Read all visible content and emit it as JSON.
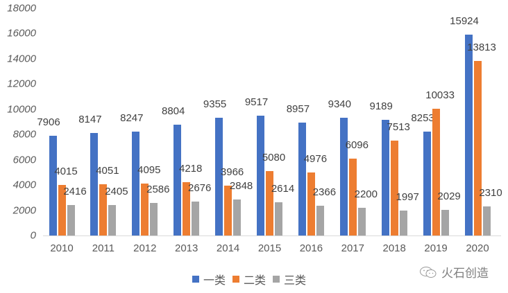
{
  "chart_data": {
    "type": "bar",
    "title": "",
    "xlabel": "",
    "ylabel": "",
    "ylim": [
      0,
      18000
    ],
    "yticks": [
      0,
      2000,
      4000,
      6000,
      8000,
      10000,
      12000,
      14000,
      16000,
      18000
    ],
    "grid": false,
    "legend_position": "bottom",
    "categories": [
      "2010",
      "2011",
      "2012",
      "2013",
      "2014",
      "2015",
      "2016",
      "2017",
      "2018",
      "2019",
      "2020"
    ],
    "series": [
      {
        "name": "一类",
        "color": "#4472c4",
        "values": [
          7906,
          8147,
          8247,
          8804,
          9355,
          9517,
          8957,
          9340,
          9189,
          8253,
          15924
        ]
      },
      {
        "name": "二类",
        "color": "#ed7d31",
        "values": [
          4015,
          4051,
          4095,
          4218,
          3966,
          5080,
          4976,
          6096,
          7513,
          10033,
          13813
        ]
      },
      {
        "name": "三类",
        "color": "#a5a5a5",
        "values": [
          2416,
          2405,
          2586,
          2676,
          2848,
          2614,
          2366,
          2200,
          1997,
          2029,
          2310
        ]
      }
    ]
  },
  "watermark": {
    "text": "火石创造",
    "icon": "wechat-icon"
  }
}
